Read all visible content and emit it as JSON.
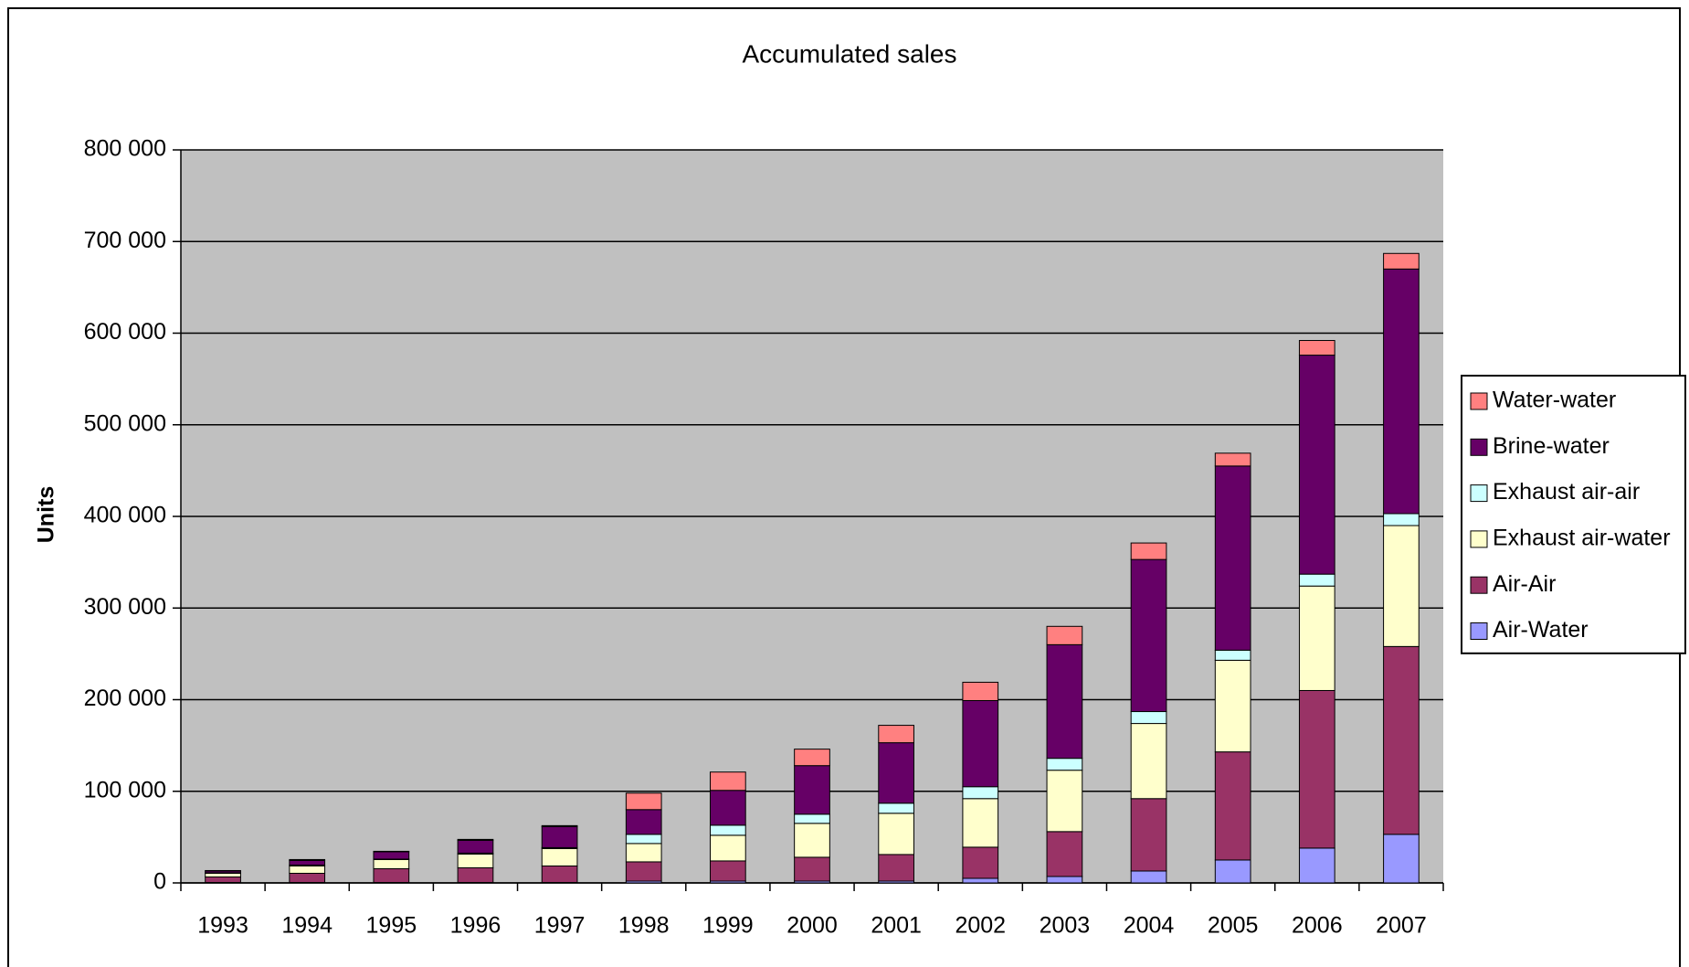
{
  "chart_data": {
    "type": "stacked_bar",
    "title": "Accumulated sales",
    "y_label": "Units",
    "categories": [
      "1993",
      "1994",
      "1995",
      "1996",
      "1997",
      "1998",
      "1999",
      "2000",
      "2001",
      "2002",
      "2003",
      "2004",
      "2005",
      "2006",
      "2007"
    ],
    "series": [
      {
        "name": "Air-Water",
        "color": "#9999ff",
        "values": [
          500,
          500,
          500,
          500,
          500,
          2000,
          2000,
          2000,
          2000,
          5000,
          7000,
          13000,
          25000,
          38000,
          53000
        ]
      },
      {
        "name": "Air-Air",
        "color": "#993366",
        "values": [
          6000,
          10000,
          15000,
          16000,
          18000,
          21000,
          22000,
          26000,
          29000,
          34000,
          49000,
          79000,
          118000,
          172000,
          205000
        ]
      },
      {
        "name": "Exhaust air-water",
        "color": "#ffffcc",
        "values": [
          4000,
          8000,
          10000,
          15000,
          19000,
          20000,
          28000,
          37000,
          45000,
          53000,
          67000,
          82000,
          100000,
          114000,
          132000
        ]
      },
      {
        "name": "Exhaust air-air",
        "color": "#ccffff",
        "values": [
          500,
          1000,
          500,
          1000,
          1000,
          10000,
          11000,
          10000,
          11000,
          13000,
          13000,
          13000,
          11000,
          13000,
          13000
        ]
      },
      {
        "name": "Brine-water",
        "color": "#660066",
        "values": [
          2000,
          5000,
          8000,
          14000,
          23000,
          27000,
          38000,
          53000,
          66000,
          94000,
          124000,
          166000,
          201000,
          239000,
          267000
        ]
      },
      {
        "name": "Water-water",
        "color": "#ff8080",
        "values": [
          500,
          1000,
          500,
          1000,
          1000,
          18000,
          20000,
          18000,
          19000,
          20000,
          20000,
          18000,
          14000,
          16000,
          17000
        ]
      }
    ],
    "ylim": [
      0,
      800000
    ],
    "yticks": [
      {
        "value": 0,
        "label": "0"
      },
      {
        "value": 100000,
        "label": "100 000"
      },
      {
        "value": 200000,
        "label": "200 000"
      },
      {
        "value": 300000,
        "label": "300 000"
      },
      {
        "value": 400000,
        "label": "400 000"
      },
      {
        "value": 500000,
        "label": "500 000"
      },
      {
        "value": 600000,
        "label": "600 000"
      },
      {
        "value": 700000,
        "label": "700 000"
      },
      {
        "value": 800000,
        "label": "800 000"
      }
    ],
    "grid": true,
    "legend": "right",
    "plot_background": "#c0c0c0"
  }
}
